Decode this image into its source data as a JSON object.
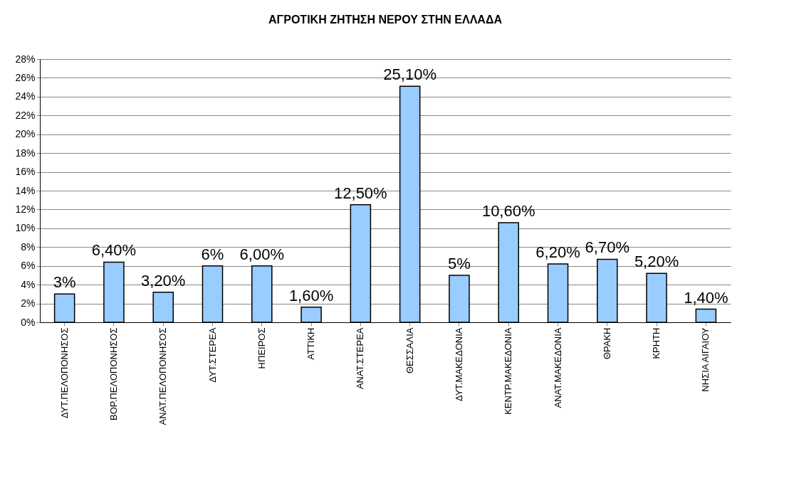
{
  "chart_data": {
    "type": "bar",
    "title": "ΑΓΡΟΤΙΚΗ ΖΗΤΗΣΗ ΝΕΡΟΥ ΣΤΗΝ ΕΛΛΑΔΑ",
    "categories": [
      "ΔΥΤ.ΠΕΛΟΠΟΝΗΣΟΣ",
      "ΒΟΡ.ΠΕΛΟΠΟΝΗΣΟΣ",
      "ΑΝΑΤ.ΠΕΛΟΠΟΝΗΣΟΣ",
      "ΔΥΤ.ΣΤΕΡΕΑ",
      "ΗΠΕΙΡΟΣ",
      "ΑΤΤΙΚΗ",
      "ΑΝΑΤ.ΣΤΕΡΕΑ",
      "ΘΕΣΣΑΛΙΑ",
      "ΔΥΤ.ΜΑΚΕΔΟΝΙΑ",
      "ΚΕΝΤΡ.ΜΑΚΕΔΟΝΙΑ",
      "ΑΝΑΤ.ΜΑΚΕΔΟΝΙΑ",
      "ΘΡΑΚΗ",
      "ΚΡΗΤΗ",
      "ΝΗΣΙΑ ΑΙΓΑΙΟΥ"
    ],
    "values": [
      3,
      6.4,
      3.2,
      6,
      6,
      1.6,
      12.5,
      25.1,
      5,
      10.6,
      6.2,
      6.7,
      5.2,
      1.4
    ],
    "value_labels": [
      "3%",
      "6,40%",
      "3,20%",
      "6%",
      "6,00%",
      "1,60%",
      "12,50%",
      "25,10%",
      "5%",
      "10,60%",
      "6,20%",
      "6,70%",
      "5,20%",
      "1,40%"
    ],
    "color": "#99ccff",
    "ylim": [
      0,
      28
    ],
    "yticks": [
      {
        "value": 0,
        "label": "0%"
      },
      {
        "value": 2,
        "label": "2%"
      },
      {
        "value": 4,
        "label": "4%"
      },
      {
        "value": 6,
        "label": "6%"
      },
      {
        "value": 8,
        "label": "8%"
      },
      {
        "value": 10,
        "label": "10%"
      },
      {
        "value": 12,
        "label": "12%"
      },
      {
        "value": 14,
        "label": "14%"
      },
      {
        "value": 16,
        "label": "16%"
      },
      {
        "value": 18,
        "label": "18%"
      },
      {
        "value": 20,
        "label": "20%"
      },
      {
        "value": 22,
        "label": "22%"
      },
      {
        "value": 24,
        "label": "24%"
      },
      {
        "value": 26,
        "label": "26%"
      },
      {
        "value": 28,
        "label": "28%"
      }
    ],
    "grid": "y"
  }
}
